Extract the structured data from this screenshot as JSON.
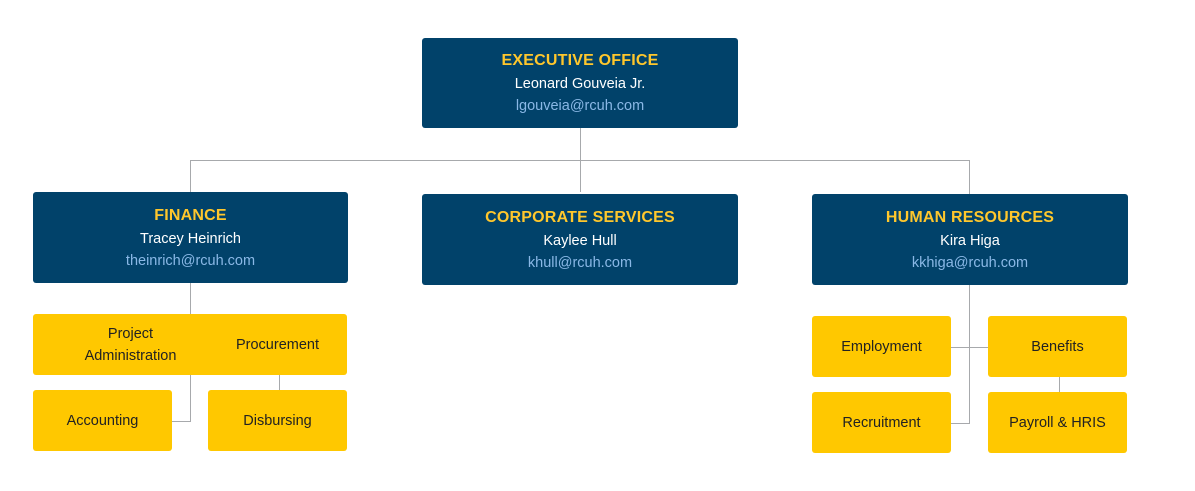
{
  "colors": {
    "header_bg": "#01426a",
    "title": "#ffc72c",
    "email": "#8ab8e6",
    "unit_bg": "#ffc800",
    "connector": "#a7a9ac"
  },
  "executive": {
    "title": "EXECUTIVE OFFICE",
    "name": "Leonard Gouveia Jr.",
    "email": "lgouveia@rcuh.com"
  },
  "departments": [
    {
      "title": "FINANCE",
      "name": "Tracey Heinrich",
      "email": "theinrich@rcuh.com",
      "units": [
        "Project Administration",
        "Procurement",
        "Accounting",
        "Disbursing"
      ]
    },
    {
      "title": "CORPORATE SERVICES",
      "name": "Kaylee Hull",
      "email": "khull@rcuh.com",
      "units": []
    },
    {
      "title": "HUMAN RESOURCES",
      "name": "Kira Higa",
      "email": "kkhiga@rcuh.com",
      "units": [
        "Employment",
        "Benefits",
        "Recruitment",
        "Payroll & HRIS"
      ]
    }
  ]
}
